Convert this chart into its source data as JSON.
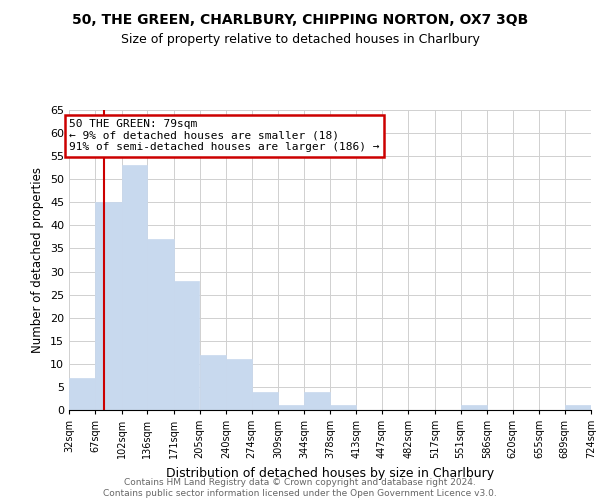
{
  "title1": "50, THE GREEN, CHARLBURY, CHIPPING NORTON, OX7 3QB",
  "title2": "Size of property relative to detached houses in Charlbury",
  "xlabel": "Distribution of detached houses by size in Charlbury",
  "ylabel": "Number of detached properties",
  "bin_edges": [
    32,
    67,
    102,
    136,
    171,
    205,
    240,
    274,
    309,
    344,
    378,
    413,
    447,
    482,
    517,
    551,
    586,
    620,
    655,
    689,
    724
  ],
  "bar_heights": [
    7,
    45,
    53,
    37,
    28,
    12,
    11,
    4,
    1,
    4,
    1,
    0,
    0,
    0,
    0,
    1,
    0,
    0,
    0,
    1
  ],
  "bar_color": "#c8d9ee",
  "bar_edgecolor": "#c8d9ee",
  "property_size": 79,
  "marker_color": "#cc0000",
  "annotation_text": "50 THE GREEN: 79sqm\n← 9% of detached houses are smaller (18)\n91% of semi-detached houses are larger (186) →",
  "annotation_box_edgecolor": "#cc0000",
  "annotation_box_facecolor": "#ffffff",
  "ylim": [
    0,
    65
  ],
  "yticks": [
    0,
    5,
    10,
    15,
    20,
    25,
    30,
    35,
    40,
    45,
    50,
    55,
    60,
    65
  ],
  "footer1": "Contains HM Land Registry data © Crown copyright and database right 2024.",
  "footer2": "Contains public sector information licensed under the Open Government Licence v3.0.",
  "background_color": "#ffffff",
  "grid_color": "#d0d0d0"
}
